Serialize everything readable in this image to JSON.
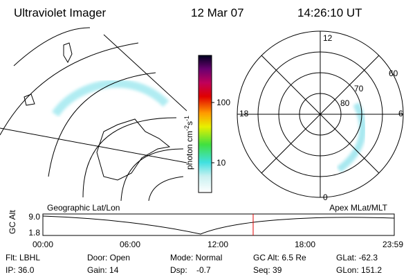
{
  "header": {
    "title": "Ultraviolet Imager",
    "date": "12 Mar 07",
    "time": "14:26:10 UT"
  },
  "colorbar": {
    "label_parts": [
      "photon cm",
      "-2",
      "s",
      "-1"
    ],
    "ticks": [
      "100",
      "10"
    ]
  },
  "polar": {
    "mlt_labels": [
      "12",
      "18",
      "6",
      "0"
    ],
    "lat_labels": [
      "60",
      "70",
      "80"
    ]
  },
  "plot": {
    "left_label": "Geographic Lat/Lon",
    "right_label": "Apex MLat/MLT",
    "y_label": "GC Alt",
    "yticks": [
      "9.0",
      "1.8"
    ],
    "xticks": [
      "00:00",
      "06:00",
      "12:00",
      "18:00",
      "23:59"
    ]
  },
  "footer": {
    "rows": [
      [
        "Flt: LBHL",
        "Door: Open",
        "Mode: Normal",
        "GC Alt: 6.5 Re",
        "GLat: -62.3"
      ],
      [
        "IP: 36.0",
        "Gain: 14",
        "Dsp:    -0.7",
        "Seq: 39",
        "GLon: 151.2"
      ]
    ]
  }
}
